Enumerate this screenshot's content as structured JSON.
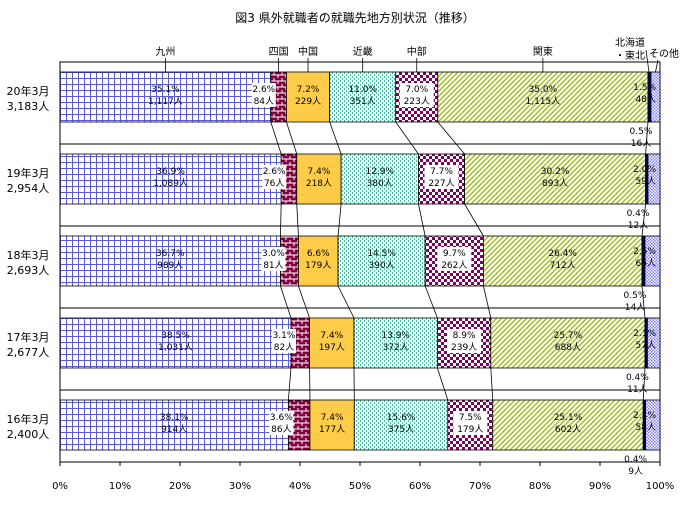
{
  "chart_data": {
    "type": "bar",
    "orientation": "horizontal",
    "stacked": true,
    "normalized": true,
    "title": "図3 県外就職者の就職先地方別状況（推移）",
    "xlim": [
      0,
      100
    ],
    "x_ticks": [
      "0%",
      "10%",
      "20%",
      "30%",
      "40%",
      "50%",
      "60%",
      "70%",
      "80%",
      "90%",
      "100%"
    ],
    "categories": [
      {
        "label": "20年3月",
        "total": "3,183人"
      },
      {
        "label": "19年3月",
        "total": "2,954人"
      },
      {
        "label": "18年3月",
        "total": "2,693人"
      },
      {
        "label": "17年3月",
        "total": "2,677人"
      },
      {
        "label": "16年3月",
        "total": "2,400人"
      }
    ],
    "series": [
      {
        "name": "九州",
        "pattern": "grid",
        "color": "#5b5bd6",
        "values": [
          35.1,
          36.9,
          36.7,
          38.5,
          38.1
        ],
        "counts": [
          "1,117人",
          "1,089人",
          "989人",
          "1,031人",
          "914人"
        ]
      },
      {
        "name": "四国",
        "pattern": "brick",
        "color": "#800040",
        "values": [
          2.6,
          2.6,
          3.0,
          3.1,
          3.6
        ],
        "counts": [
          "84人",
          "76人",
          "81人",
          "82人",
          "86人"
        ]
      },
      {
        "name": "中国",
        "pattern": "hstripe",
        "color": "#ffc020",
        "values": [
          7.2,
          7.4,
          6.6,
          7.4,
          7.4
        ],
        "counts": [
          "229人",
          "218人",
          "179人",
          "197人",
          "177人"
        ]
      },
      {
        "name": "近畿",
        "pattern": "dash",
        "color": "#40c0a0",
        "values": [
          11.0,
          12.9,
          14.5,
          13.9,
          15.6
        ],
        "counts": [
          "351人",
          "380人",
          "390人",
          "372人",
          "375人"
        ]
      },
      {
        "name": "中部",
        "pattern": "check",
        "color": "#800060",
        "values": [
          7.0,
          7.7,
          9.7,
          8.9,
          7.5
        ],
        "counts": [
          "223人",
          "227人",
          "262人",
          "239人",
          "179人"
        ]
      },
      {
        "name": "関東",
        "pattern": "diag",
        "color": "#a0c020",
        "values": [
          35.0,
          30.2,
          26.4,
          25.7,
          25.1
        ],
        "counts": [
          "1,115人",
          "893人",
          "712人",
          "688人",
          "602人"
        ]
      },
      {
        "name": "北海道・東北",
        "pattern": "solid",
        "color": "#000060",
        "values": [
          0.5,
          0.4,
          0.5,
          0.4,
          0.4
        ],
        "counts": [
          "16人",
          "12人",
          "14人",
          "11人",
          "9人"
        ]
      },
      {
        "name": "その他",
        "pattern": "fine",
        "color": "#8080ff",
        "values": [
          1.5,
          2.0,
          2.5,
          2.1,
          2.4
        ],
        "counts": [
          "48人",
          "59人",
          "66人",
          "57人",
          "58人"
        ]
      }
    ],
    "legend": {
      "position": "top",
      "style": "labels-with-leader-lines"
    },
    "grid": false
  }
}
